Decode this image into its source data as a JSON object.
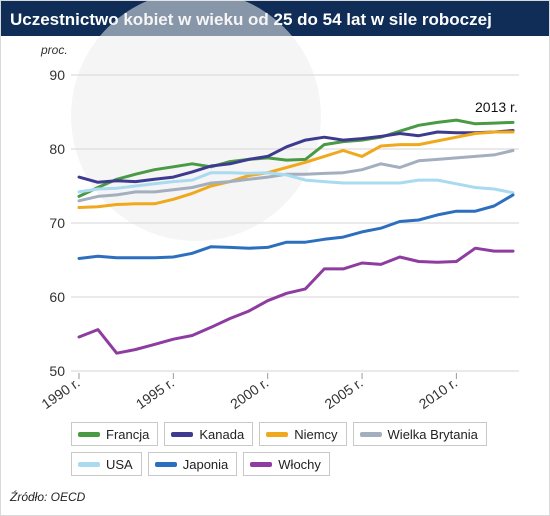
{
  "title": "Uczestnictwo kobiet w wieku od 25 do 54 lat w sile roboczej",
  "source": "Źródło: OECD",
  "chart_data": {
    "type": "line",
    "ylabel": "proc.",
    "annotation": "2013 r.",
    "ylim": [
      50,
      90
    ],
    "yticks": [
      50,
      60,
      70,
      80,
      90
    ],
    "xlim": [
      1990,
      2013
    ],
    "xticks": [
      {
        "value": 1990,
        "label": "1990 r."
      },
      {
        "value": 1995,
        "label": "1995 r."
      },
      {
        "value": 2000,
        "label": "2000 r."
      },
      {
        "value": 2005,
        "label": "2005 r."
      },
      {
        "value": 2010,
        "label": "2010 r."
      }
    ],
    "grid": true,
    "x": [
      1990,
      1991,
      1992,
      1993,
      1994,
      1995,
      1996,
      1997,
      1998,
      1999,
      2000,
      2001,
      2002,
      2003,
      2004,
      2005,
      2006,
      2007,
      2008,
      2009,
      2010,
      2011,
      2012,
      2013
    ],
    "series": [
      {
        "name": "Francja",
        "color": "#4a9a45",
        "values": [
          73.6,
          74.8,
          75.9,
          76.6,
          77.2,
          77.6,
          78.0,
          77.6,
          78.3,
          78.6,
          78.8,
          78.5,
          78.6,
          80.6,
          81.0,
          81.2,
          81.6,
          82.4,
          83.2,
          83.6,
          83.9,
          83.4,
          83.5,
          83.6
        ]
      },
      {
        "name": "Kanada",
        "color": "#3d3a8f",
        "values": [
          76.2,
          75.5,
          75.7,
          75.6,
          75.9,
          76.2,
          76.9,
          77.7,
          78.0,
          78.6,
          79.0,
          80.3,
          81.2,
          81.6,
          81.2,
          81.4,
          81.7,
          82.1,
          81.8,
          82.3,
          82.2,
          82.2,
          82.3,
          82.5
        ]
      },
      {
        "name": "Niemcy",
        "color": "#f0a81c",
        "values": [
          72.1,
          72.2,
          72.5,
          72.6,
          72.6,
          73.2,
          74.0,
          75.0,
          75.6,
          76.4,
          76.8,
          77.5,
          78.2,
          79.0,
          79.8,
          79.0,
          80.4,
          80.6,
          80.6,
          81.1,
          81.6,
          82.1,
          82.3,
          82.3
        ]
      },
      {
        "name": "Wielka Brytania",
        "color": "#a3afbf",
        "values": [
          73.0,
          73.6,
          73.8,
          74.2,
          74.2,
          74.5,
          74.8,
          75.4,
          75.6,
          75.9,
          76.2,
          76.6,
          76.6,
          76.7,
          76.8,
          77.2,
          78.0,
          77.5,
          78.4,
          78.6,
          78.8,
          79.0,
          79.2,
          79.8
        ]
      },
      {
        "name": "USA",
        "color": "#a9daf0",
        "values": [
          74.2,
          74.6,
          74.7,
          75.0,
          75.3,
          75.6,
          75.8,
          76.8,
          76.8,
          76.7,
          76.8,
          76.5,
          75.8,
          75.6,
          75.4,
          75.4,
          75.4,
          75.4,
          75.8,
          75.8,
          75.3,
          74.8,
          74.6,
          74.1
        ]
      },
      {
        "name": "Japonia",
        "color": "#2d6fbf",
        "values": [
          65.2,
          65.5,
          65.3,
          65.3,
          65.3,
          65.4,
          65.9,
          66.8,
          66.7,
          66.6,
          66.7,
          67.4,
          67.4,
          67.8,
          68.1,
          68.8,
          69.3,
          70.2,
          70.4,
          71.1,
          71.6,
          71.6,
          72.3,
          73.8
        ]
      },
      {
        "name": "Włochy",
        "color": "#8e3ca0",
        "values": [
          54.6,
          55.6,
          52.4,
          52.9,
          53.6,
          54.3,
          54.8,
          55.9,
          57.1,
          58.1,
          59.5,
          60.5,
          61.1,
          63.8,
          63.8,
          64.6,
          64.4,
          65.4,
          64.8,
          64.7,
          64.8,
          66.6,
          66.2,
          66.2
        ]
      }
    ]
  }
}
